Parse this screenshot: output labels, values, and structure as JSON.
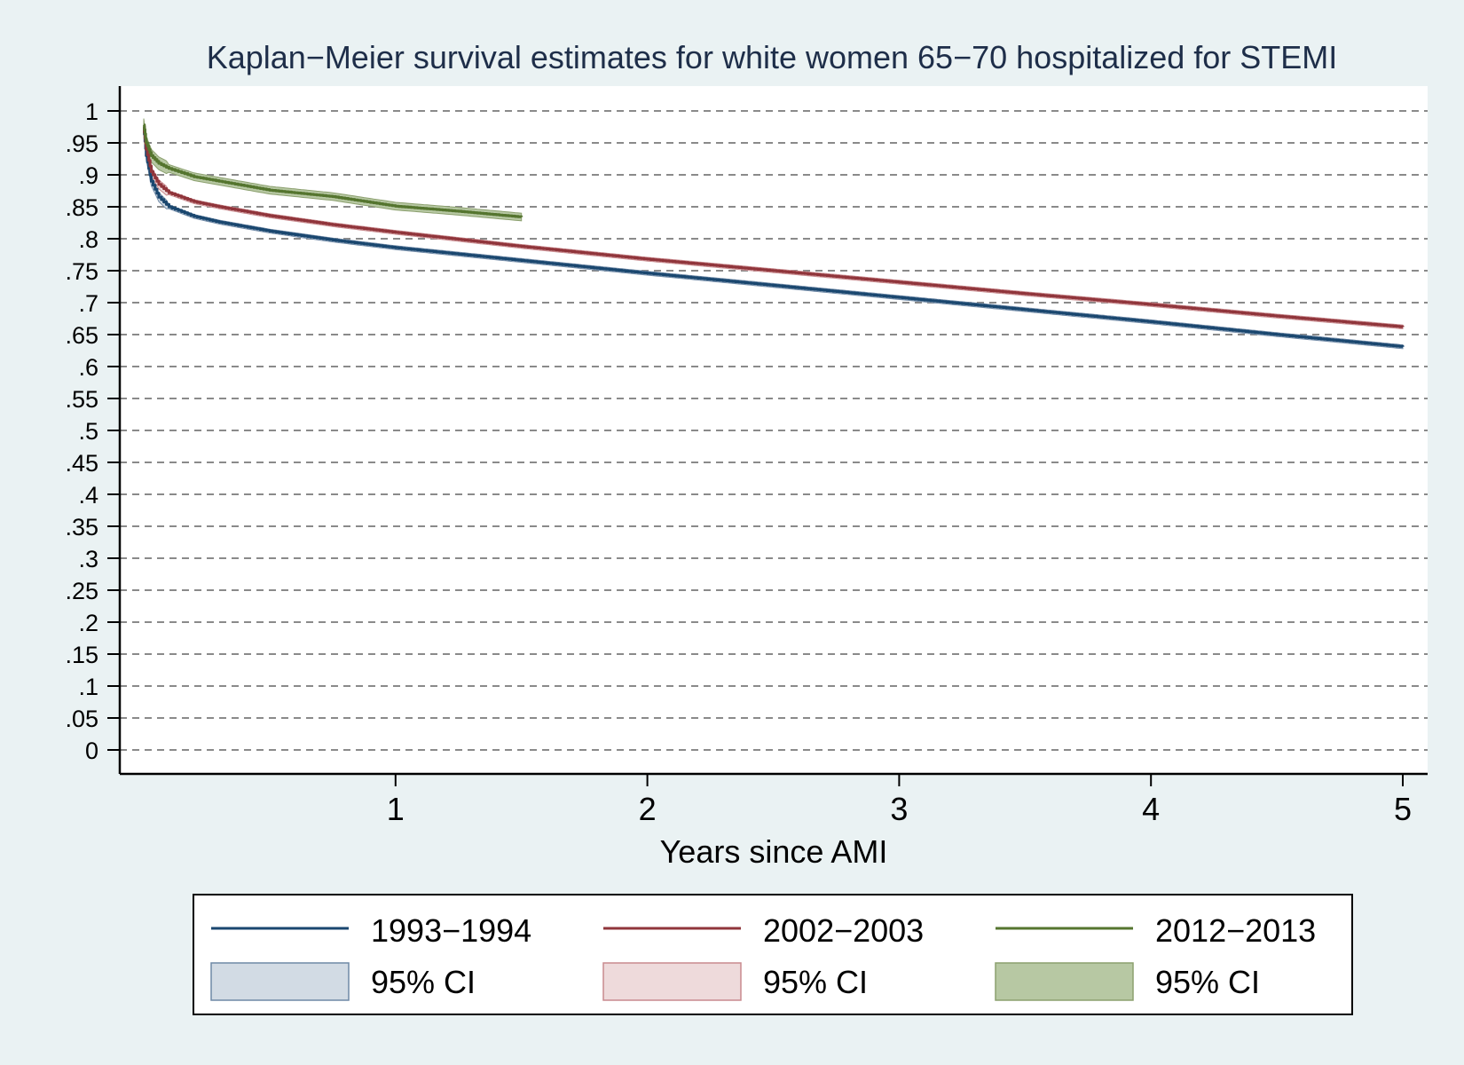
{
  "chart_data": {
    "type": "line",
    "title": "Kaplan−Meier survival estimates for white women 65−70 hospitalized for STEMI",
    "xlabel": "Years since AMI",
    "ylabel": "",
    "xlim": [
      0,
      5.1
    ],
    "ylim": [
      0,
      1
    ],
    "x_ticks": [
      "1",
      "2",
      "3",
      "4",
      "5"
    ],
    "y_ticks": [
      "0",
      ".05",
      ".1",
      ".15",
      ".2",
      ".25",
      ".3",
      ".35",
      ".4",
      ".45",
      ".5",
      ".55",
      ".6",
      ".65",
      ".7",
      ".75",
      ".8",
      ".85",
      ".9",
      ".95",
      "1"
    ],
    "grid": "horizontal dashed",
    "legend_position": "bottom",
    "ci_label": "95% CI",
    "series": [
      {
        "name": "1993−1994",
        "color": "#1a476f",
        "ci_fill": "#d2dbe4",
        "ci_stroke": "#6f89a6",
        "x": [
          0.0,
          0.01,
          0.03,
          0.06,
          0.1,
          0.2,
          0.3,
          0.5,
          0.75,
          1.0,
          1.5,
          2.0,
          2.5,
          3.0,
          3.5,
          4.0,
          4.5,
          5.0
        ],
        "y": [
          0.975,
          0.93,
          0.89,
          0.865,
          0.85,
          0.835,
          0.826,
          0.812,
          0.798,
          0.786,
          0.766,
          0.746,
          0.727,
          0.708,
          0.689,
          0.67,
          0.65,
          0.631
        ]
      },
      {
        "name": "2002−2003",
        "color": "#90353b",
        "ci_fill": "#eedadb",
        "ci_stroke": "#c98a8e",
        "x": [
          0.0,
          0.01,
          0.03,
          0.06,
          0.1,
          0.2,
          0.3,
          0.5,
          0.75,
          1.0,
          1.5,
          2.0,
          2.5,
          3.0,
          3.5,
          4.0,
          4.5,
          5.0
        ],
        "y": [
          0.975,
          0.94,
          0.905,
          0.885,
          0.872,
          0.858,
          0.85,
          0.836,
          0.822,
          0.81,
          0.788,
          0.768,
          0.75,
          0.732,
          0.714,
          0.697,
          0.679,
          0.662
        ]
      },
      {
        "name": "2012−2013",
        "color": "#55752f",
        "ci_fill": "#b7c8a3",
        "ci_stroke": "#8ca06f",
        "x": [
          0.0,
          0.01,
          0.03,
          0.06,
          0.1,
          0.2,
          0.3,
          0.5,
          0.75,
          1.0,
          1.25,
          1.5
        ],
        "y": [
          0.978,
          0.95,
          0.93,
          0.918,
          0.91,
          0.897,
          0.89,
          0.876,
          0.866,
          0.851,
          0.843,
          0.834
        ]
      }
    ]
  }
}
